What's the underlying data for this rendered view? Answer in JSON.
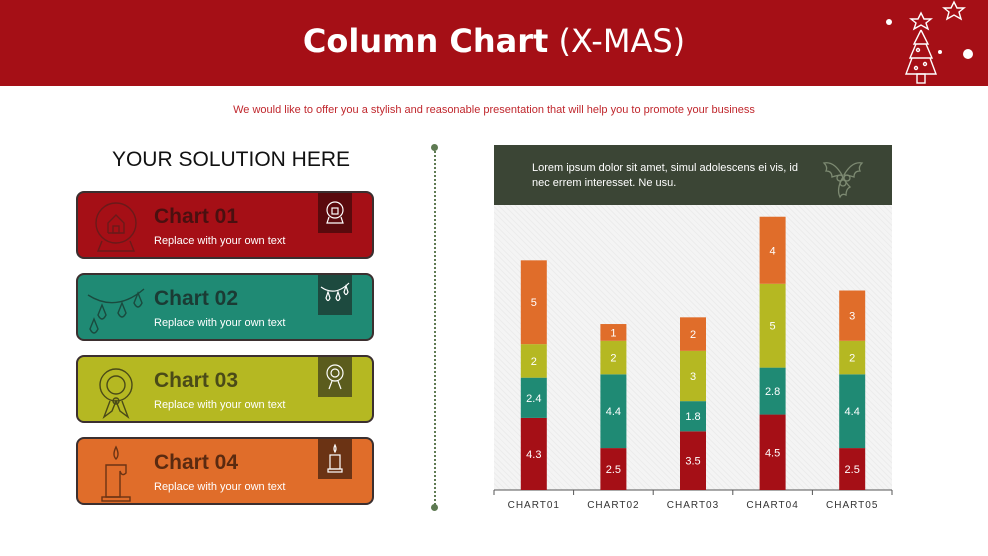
{
  "header": {
    "title_bold": "Column Chart",
    "title_light": "(X-MAS)",
    "subtitle": "We would like to offer you a stylish and reasonable presentation that will help you to promote your business"
  },
  "solution": {
    "heading": "YOUR SOLUTION HERE",
    "cards": [
      {
        "name": "Chart 01",
        "desc": "Replace with your own text",
        "bg": "#a50f16",
        "name_color": "#4a1010",
        "icon_bg": "#5a0a0d",
        "icon": "snow-globe-icon"
      },
      {
        "name": "Chart 02",
        "desc": "Replace with your own text",
        "bg": "#1f8a74",
        "name_color": "#1b3b34",
        "icon_bg": "#1d4a3f",
        "icon": "string-lights-icon"
      },
      {
        "name": "Chart 03",
        "desc": "Replace with your own text",
        "bg": "#b5b822",
        "name_color": "#4a4a18",
        "icon_bg": "#5b5c1d",
        "icon": "wreath-icon"
      },
      {
        "name": "Chart 04",
        "desc": "Replace with your own text",
        "bg": "#e06d2a",
        "name_color": "#5a2a10",
        "icon_bg": "#6b3314",
        "icon": "candle-icon"
      }
    ]
  },
  "chart_header": {
    "text": "Lorem ipsum dolor sit amet, simul adolescens ei vis, id nec errem interesset. Ne usu.",
    "icon": "holly-icon"
  },
  "chart_data": {
    "type": "bar",
    "stacked": true,
    "categories": [
      "CHART01",
      "CHART02",
      "CHART03",
      "CHART04",
      "CHART05"
    ],
    "series": [
      {
        "values": [
          4.3,
          2.5,
          3.5,
          4.5,
          2.5
        ],
        "color": "#a50f16"
      },
      {
        "values": [
          2.4,
          4.4,
          1.8,
          2.8,
          4.4
        ],
        "color": "#1f8a74"
      },
      {
        "values": [
          2,
          2,
          3,
          5,
          2
        ],
        "color": "#b5b822"
      },
      {
        "values": [
          5,
          1,
          2,
          4,
          3
        ],
        "color": "#e06d2a"
      }
    ],
    "ylim": [
      0,
      17
    ],
    "grid": false,
    "legend": "none",
    "xlabel": "",
    "ylabel": ""
  }
}
